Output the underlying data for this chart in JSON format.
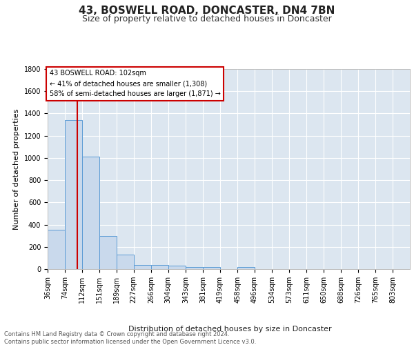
{
  "title1": "43, BOSWELL ROAD, DONCASTER, DN4 7BN",
  "title2": "Size of property relative to detached houses in Doncaster",
  "xlabel": "Distribution of detached houses by size in Doncaster",
  "ylabel": "Number of detached properties",
  "bar_edges": [
    36,
    74,
    112,
    151,
    189,
    227,
    266,
    304,
    343,
    381,
    419,
    458,
    496,
    534,
    573,
    611,
    650,
    688,
    726,
    765,
    803
  ],
  "bar_heights": [
    355,
    1340,
    1010,
    295,
    130,
    40,
    38,
    30,
    20,
    18,
    0,
    20,
    0,
    0,
    0,
    0,
    0,
    0,
    0,
    0
  ],
  "bar_color": "#c9d9ec",
  "bar_edge_color": "#5b9bd5",
  "background_color": "#dce6f0",
  "grid_color": "#ffffff",
  "vline_x": 102,
  "vline_color": "#cc0000",
  "annotation_text": "43 BOSWELL ROAD: 102sqm\n← 41% of detached houses are smaller (1,308)\n58% of semi-detached houses are larger (1,871) →",
  "annotation_box_color": "#ffffff",
  "annotation_box_edge_color": "#cc0000",
  "ylim": [
    0,
    1800
  ],
  "yticks": [
    0,
    200,
    400,
    600,
    800,
    1000,
    1200,
    1400,
    1600,
    1800
  ],
  "tick_labels": [
    "36sqm",
    "74sqm",
    "112sqm",
    "151sqm",
    "189sqm",
    "227sqm",
    "266sqm",
    "304sqm",
    "343sqm",
    "381sqm",
    "419sqm",
    "458sqm",
    "496sqm",
    "534sqm",
    "573sqm",
    "611sqm",
    "650sqm",
    "688sqm",
    "726sqm",
    "765sqm",
    "803sqm"
  ],
  "footer_text": "Contains HM Land Registry data © Crown copyright and database right 2024.\nContains public sector information licensed under the Open Government Licence v3.0.",
  "title1_fontsize": 11,
  "title2_fontsize": 9,
  "xlabel_fontsize": 8,
  "ylabel_fontsize": 8,
  "tick_fontsize": 7,
  "footer_fontsize": 6
}
